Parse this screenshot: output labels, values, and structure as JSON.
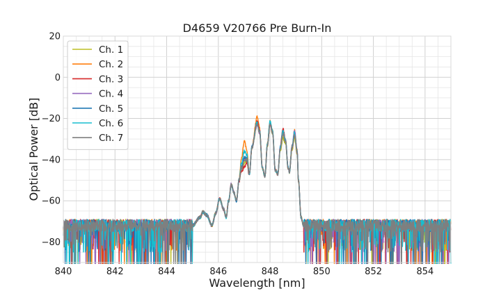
{
  "chart_data": {
    "type": "line",
    "title": "D4659 V20766 Pre Burn-In",
    "xlabel": "Wavelength [nm]",
    "ylabel": "Optical Power [dB]",
    "xlim": [
      840,
      855
    ],
    "ylim": [
      -90,
      20
    ],
    "xticks": [
      840,
      842,
      844,
      846,
      848,
      850,
      852,
      854
    ],
    "xtick_labels": [
      "840",
      "842",
      "844",
      "846",
      "848",
      "850",
      "852",
      "854"
    ],
    "yticks": [
      20,
      0,
      -20,
      -40,
      -60,
      -80
    ],
    "ytick_labels": [
      "20",
      "0",
      "−20",
      "−40",
      "−60",
      "−80"
    ],
    "grid": true,
    "legend_position": "upper-left",
    "legend_entries": [
      "Ch. 1",
      "Ch. 2",
      "Ch. 3",
      "Ch. 4",
      "Ch. 5",
      "Ch. 6",
      "Ch. 7"
    ],
    "colors": [
      "#bcbd22",
      "#ff7f0e",
      "#d62728",
      "#9467bd",
      "#1f77b4",
      "#17becf",
      "#7f7f7f"
    ],
    "noise_floor": -72,
    "noise_min": -90,
    "spectrum_nodes": [
      [
        845.0,
        -72
      ],
      [
        845.3,
        -68
      ],
      [
        845.4,
        -65.5
      ],
      [
        845.55,
        -67
      ],
      [
        845.75,
        -72
      ],
      [
        845.9,
        -66
      ],
      [
        846.05,
        -59
      ],
      [
        846.2,
        -64
      ],
      [
        846.3,
        -68
      ],
      [
        846.4,
        -60
      ],
      [
        846.5,
        -52
      ],
      [
        846.6,
        -56
      ],
      [
        846.7,
        -60
      ],
      [
        846.8,
        -50
      ],
      [
        846.9,
        -41
      ],
      [
        847.0,
        -35
      ],
      [
        847.1,
        -37
      ],
      [
        847.2,
        -47
      ],
      [
        847.3,
        -34
      ],
      [
        847.5,
        -23
      ],
      [
        847.6,
        -27
      ],
      [
        847.7,
        -44
      ],
      [
        847.8,
        -48
      ],
      [
        847.9,
        -33
      ],
      [
        848.0,
        -22.5
      ],
      [
        848.1,
        -27
      ],
      [
        848.2,
        -45
      ],
      [
        848.3,
        -47
      ],
      [
        848.4,
        -34
      ],
      [
        848.5,
        -26.5
      ],
      [
        848.6,
        -31
      ],
      [
        848.7,
        -44
      ],
      [
        848.75,
        -46
      ],
      [
        848.85,
        -34
      ],
      [
        848.95,
        -27
      ],
      [
        849.05,
        -36
      ],
      [
        849.1,
        -50
      ],
      [
        849.2,
        -68
      ],
      [
        849.3,
        -72
      ]
    ],
    "series": [
      {
        "name": "Ch. 1",
        "peak_offsets": [
          0,
          -0.5,
          -3,
          -2.5,
          -7
        ],
        "seed": 11
      },
      {
        "name": "Ch. 2",
        "peak_offsets": [
          4,
          1.5,
          0,
          1,
          4
        ],
        "seed": 23
      },
      {
        "name": "Ch. 3",
        "peak_offsets": [
          2,
          0,
          1.5,
          -1,
          -9
        ],
        "seed": 37
      },
      {
        "name": "Ch. 4",
        "peak_offsets": [
          0,
          0,
          0,
          1,
          -5
        ],
        "seed": 41
      },
      {
        "name": "Ch. 5",
        "peak_offsets": [
          1,
          0.5,
          0,
          0,
          -4
        ],
        "seed": 53
      },
      {
        "name": "Ch. 6",
        "peak_offsets": [
          1,
          1.5,
          0,
          0,
          -1
        ],
        "seed": 67
      },
      {
        "name": "Ch. 7",
        "peak_offsets": [
          0,
          0,
          -1,
          -1,
          -6
        ],
        "seed": 79
      }
    ]
  }
}
